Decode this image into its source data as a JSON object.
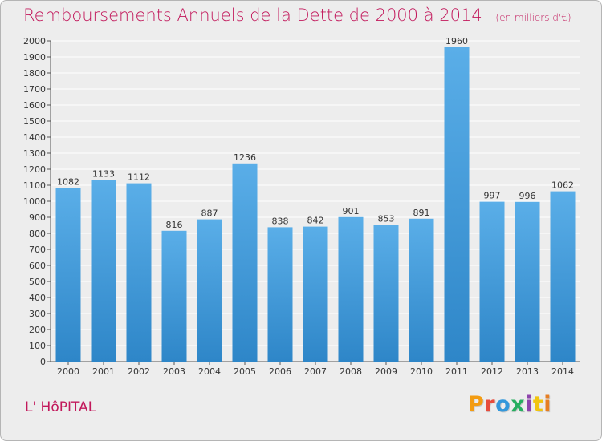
{
  "header": {
    "title": "Remboursements Annuels de la Dette de 2000 à 2014",
    "unit": "(en milliers d'€)"
  },
  "footer": {
    "place": "L' HôPITAL",
    "brand": "Proxiti",
    "brand_colors": [
      "#f39c12",
      "#e74c3c",
      "#3498db",
      "#27ae60",
      "#8e44ad",
      "#f1c40f",
      "#e67e22"
    ]
  },
  "colors": {
    "bar": "#5aaee8",
    "bar_dark": "#2e86c8",
    "title": "#c2185b",
    "grid": "#ffffff",
    "background": "#ededed"
  },
  "chart_data": {
    "type": "bar",
    "title": "Remboursements Annuels de la Dette de 2000 à 2014",
    "xlabel": "",
    "ylabel": "",
    "ylim": [
      0,
      2000
    ],
    "ytick_step": 100,
    "grid": true,
    "categories": [
      "2000",
      "2001",
      "2002",
      "2003",
      "2004",
      "2005",
      "2006",
      "2007",
      "2008",
      "2009",
      "2010",
      "2011",
      "2012",
      "2013",
      "2014"
    ],
    "values": [
      1082,
      1133,
      1112,
      816,
      887,
      1236,
      838,
      842,
      901,
      853,
      891,
      1960,
      997,
      996,
      1062
    ]
  }
}
